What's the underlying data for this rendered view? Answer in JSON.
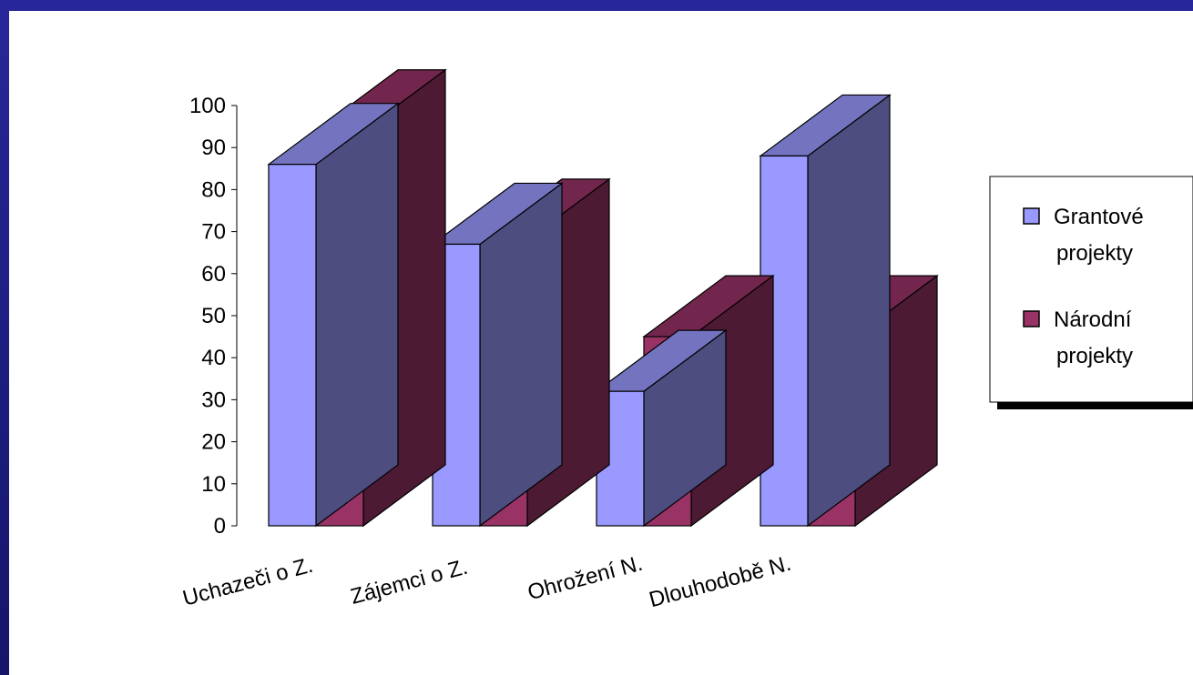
{
  "chart_data": {
    "type": "bar",
    "categories": [
      "Uchazeči o Z.",
      "Zájemci o Z.",
      "Ohrožení N.",
      "Dlouhodobě N."
    ],
    "series": [
      {
        "name": "Grantové projekty",
        "legend_lines": [
          "Grantové",
          "projekty"
        ],
        "values": [
          86,
          67,
          32,
          88
        ]
      },
      {
        "name": "Národní projekty",
        "legend_lines": [
          "Národní",
          "projekty"
        ],
        "values": [
          94,
          68,
          45,
          45
        ]
      }
    ],
    "ylim": [
      0,
      100
    ],
    "yticks": [
      0,
      10,
      20,
      30,
      40,
      50,
      60,
      70,
      80,
      90,
      100
    ],
    "grid": false,
    "legend_position": "right",
    "colors": {
      "series1_front": "#9999ff",
      "series1_top": "#7373c0",
      "series1_side": "#4d4d80",
      "series2_front": "#993366",
      "series2_top": "#73264d",
      "series2_side": "#4d1a33",
      "background": "#1e1e7a",
      "panel": "#ffffff"
    }
  }
}
